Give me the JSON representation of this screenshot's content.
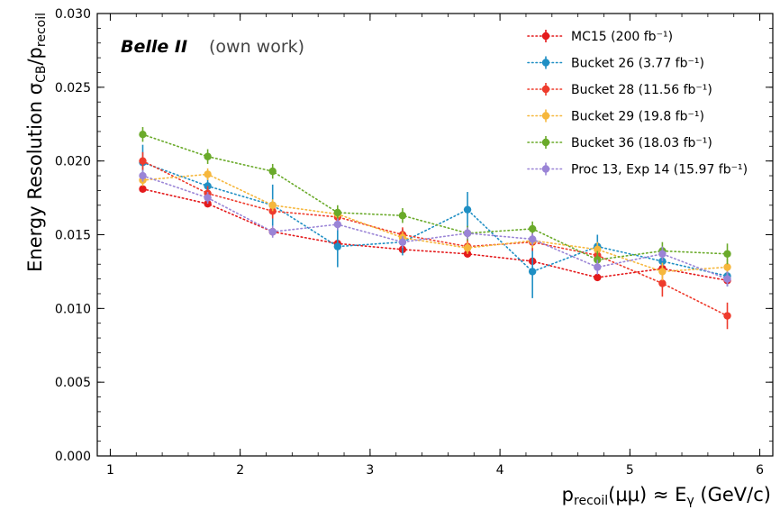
{
  "chart_data": {
    "type": "line",
    "experiment_label": "Belle II",
    "status_label": "(own work)",
    "xlabel": {
      "prefix": "p",
      "sub": "recoil",
      "middle": "(μμ) ≈ E",
      "sub2": "γ",
      "unit": " (GeV/c)"
    },
    "ylabel": {
      "prefix": "Energy Resolution σ",
      "sub": "CB",
      "middle": "/p",
      "sub2": "recoil"
    },
    "xlim": [
      0.9,
      6.1
    ],
    "ylim": [
      0.0,
      0.03
    ],
    "xticks": [
      "1",
      "2",
      "3",
      "4",
      "5",
      "6"
    ],
    "yticks": [
      "0.000",
      "0.005",
      "0.010",
      "0.015",
      "0.020",
      "0.025",
      "0.030"
    ],
    "x": [
      1.25,
      1.75,
      2.25,
      2.75,
      3.25,
      3.75,
      4.25,
      4.75,
      5.25,
      5.75
    ],
    "legend_position": "top-right",
    "series": [
      {
        "name": "MC15 (200 fb⁻¹)",
        "color": "#e41a1c",
        "values": [
          0.0181,
          0.0171,
          0.0152,
          0.0144,
          0.014,
          0.0137,
          0.0132,
          0.0121,
          0.0127,
          0.0119
        ],
        "errors": [
          0.0002,
          0.0002,
          0.0002,
          0.0002,
          0.0002,
          0.0002,
          0.0002,
          0.0002,
          0.0002,
          0.0002
        ]
      },
      {
        "name": "Bucket 26 (3.77 fb⁻¹)",
        "color": "#1f8fc4",
        "values": [
          0.0199,
          0.0183,
          0.017,
          0.0142,
          0.0145,
          0.0167,
          0.0125,
          0.0142,
          0.0132,
          0.0122
        ],
        "errors": [
          0.0012,
          0.0008,
          0.0014,
          0.0014,
          0.0009,
          0.0012,
          0.0018,
          0.0008,
          0.0008,
          0.0007
        ]
      },
      {
        "name": "Bucket 28 (11.56 fb⁻¹)",
        "color": "#ee3b2c",
        "values": [
          0.02,
          0.0178,
          0.0166,
          0.0162,
          0.015,
          0.0142,
          0.0145,
          0.0136,
          0.0117,
          0.0095
        ],
        "errors": [
          0.0006,
          0.0005,
          0.0005,
          0.0005,
          0.0005,
          0.0005,
          0.0006,
          0.0006,
          0.0009,
          0.0009
        ]
      },
      {
        "name": "Bucket 29 (19.8 fb⁻¹)",
        "color": "#f6b73c",
        "values": [
          0.0187,
          0.0191,
          0.017,
          0.0164,
          0.0148,
          0.0141,
          0.0146,
          0.014,
          0.0125,
          0.0128
        ],
        "errors": [
          0.0004,
          0.0004,
          0.0004,
          0.0004,
          0.0004,
          0.0004,
          0.0005,
          0.0005,
          0.0006,
          0.0006
        ]
      },
      {
        "name": "Bucket 36 (18.03 fb⁻¹)",
        "color": "#6aaa2a",
        "values": [
          0.0218,
          0.0203,
          0.0193,
          0.0165,
          0.0163,
          0.0151,
          0.0154,
          0.0133,
          0.0139,
          0.0137
        ],
        "errors": [
          0.0005,
          0.0005,
          0.0005,
          0.0005,
          0.0005,
          0.0005,
          0.0005,
          0.0006,
          0.0006,
          0.0007
        ]
      },
      {
        "name": "Proc 13, Exp 14 (15.97 fb⁻¹)",
        "color": "#9a84d6",
        "values": [
          0.019,
          0.0175,
          0.0152,
          0.0157,
          0.0145,
          0.0151,
          0.0147,
          0.0128,
          0.0137,
          0.012
        ],
        "errors": [
          0.0004,
          0.0004,
          0.0004,
          0.0004,
          0.0004,
          0.0004,
          0.0004,
          0.0005,
          0.0005,
          0.0005
        ]
      }
    ]
  }
}
